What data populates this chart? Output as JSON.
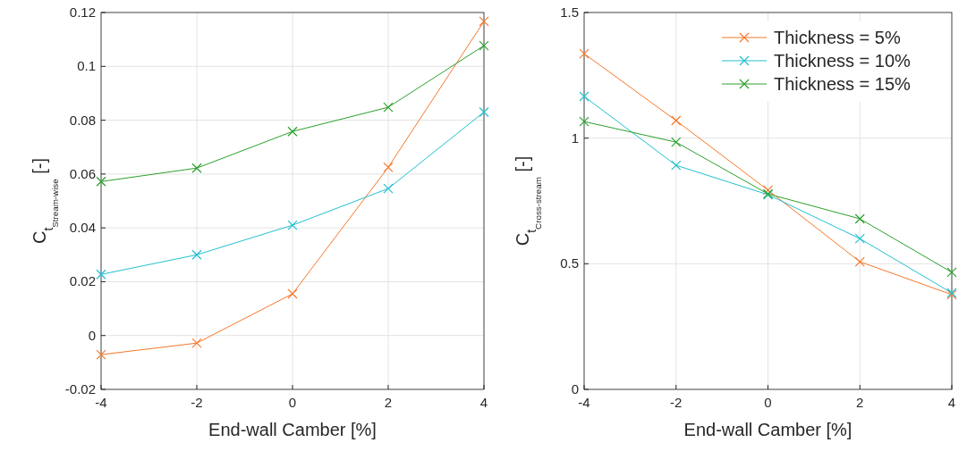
{
  "chart_data": [
    {
      "type": "line",
      "xlabel": "End-wall Camber [%]",
      "ylabel": "C$_{t}$$_{Stream-wise}$ [-]",
      "x": [
        -4,
        -2,
        0,
        2,
        4
      ],
      "xlim": [
        -4,
        4
      ],
      "xticks": [
        -4,
        -2,
        0,
        2,
        4
      ],
      "ylim": [
        -0.02,
        0.12
      ],
      "yticks": [
        -0.02,
        0,
        0.02,
        0.04,
        0.06,
        0.08,
        0.1,
        0.12
      ],
      "grid": true,
      "marker": "cross",
      "legend": false,
      "series": [
        {
          "color": "#f4782a",
          "values": [
            -0.0071,
            -0.0028,
            0.0155,
            0.0625,
            0.1167
          ]
        },
        {
          "color": "#22bfd0",
          "values": [
            0.0227,
            0.03,
            0.041,
            0.0546,
            0.083
          ]
        },
        {
          "color": "#2ca02c",
          "values": [
            0.0572,
            0.0622,
            0.0758,
            0.0848,
            0.1077
          ]
        }
      ]
    },
    {
      "type": "line",
      "xlabel": "End-wall Camber [%]",
      "ylabel": "C$_{t}$$_{Cross-stream}$ [-]",
      "x": [
        -4,
        -2,
        0,
        2,
        4
      ],
      "xlim": [
        -4,
        4
      ],
      "xticks": [
        -4,
        -2,
        0,
        2,
        4
      ],
      "ylim": [
        0,
        1.5
      ],
      "yticks": [
        0,
        0.5,
        1,
        1.5
      ],
      "grid": true,
      "marker": "cross",
      "legend": "top right",
      "series": [
        {
          "name": "Thickness = 5%",
          "color": "#f4782a",
          "values": [
            1.336,
            1.07,
            0.793,
            0.508,
            0.377
          ]
        },
        {
          "name": "Thickness = 10%",
          "color": "#22bfd0",
          "values": [
            1.166,
            0.892,
            0.775,
            0.6,
            0.384
          ]
        },
        {
          "name": "Thickness = 15%",
          "color": "#2ca02c",
          "values": [
            1.066,
            0.984,
            0.778,
            0.679,
            0.466
          ]
        }
      ]
    }
  ]
}
